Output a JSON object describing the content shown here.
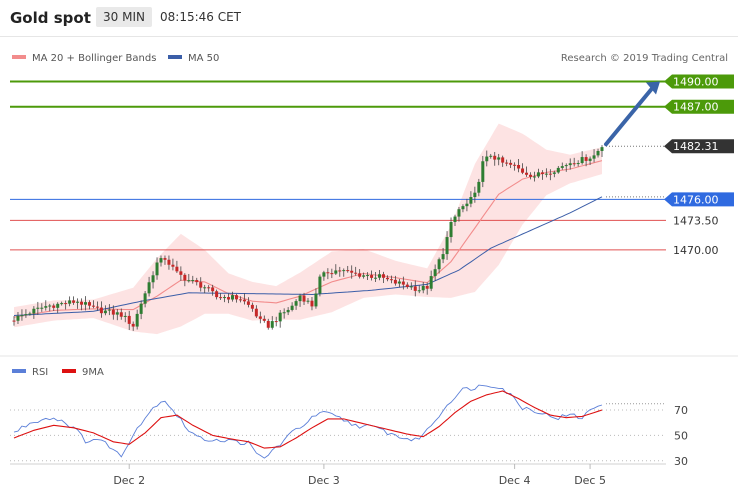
{
  "header": {
    "title": "Gold spot",
    "timeframe": "30 MIN",
    "time": "08:15:46 CET"
  },
  "legend": {
    "ma20_label": "MA 20 + Bollinger Bands",
    "ma50_label": "MA 50",
    "ma20_color": "#f28c8c",
    "ma50_color": "#3b5ea8",
    "credit": "Research © 2019 Trading Central"
  },
  "rsi_legend": {
    "rsi_label": "RSI",
    "ma_label": "9MA",
    "rsi_color": "#5b7fd8",
    "ma_color": "#dd1111"
  },
  "colors": {
    "green": "#4c9a0a",
    "blue_level": "#2f6ae0",
    "red_level": "#e05050",
    "up_candle": "#2e7d32",
    "down_candle": "#c62828",
    "band_fill": "#fde0e0",
    "arrow": "#3a64a8",
    "last_price_bg": "#333333"
  },
  "chart_data": [
    {
      "type": "candlestick",
      "title": "Gold spot",
      "ylim": [
        1458.7,
        1491.6
      ],
      "x_ticks": [
        "Dec 2",
        "Dec 3",
        "Dec 4",
        "Dec 5"
      ],
      "levels": [
        {
          "label": "1490.00",
          "value": 1490.0,
          "style": "resistance-green"
        },
        {
          "label": "1487.00",
          "value": 1487.0,
          "style": "resistance-green"
        },
        {
          "label": "1476.00",
          "value": 1476.0,
          "style": "pivot-blue"
        },
        {
          "label": "1473.50",
          "value": 1473.5,
          "style": "support-red"
        },
        {
          "label": "1470.00",
          "value": 1470.0,
          "style": "support-red"
        }
      ],
      "last_price": {
        "label": "1482.31",
        "value": 1482.31
      },
      "close_anchors": [
        [
          0,
          1461.8
        ],
        [
          4,
          1462.6
        ],
        [
          8,
          1463.3
        ],
        [
          12,
          1463.6
        ],
        [
          16,
          1463.9
        ],
        [
          20,
          1463.0
        ],
        [
          24,
          1462.6
        ],
        [
          27,
          1462.3
        ],
        [
          30,
          1461.0
        ],
        [
          32,
          1463.7
        ],
        [
          34,
          1466.1
        ],
        [
          36,
          1468.4
        ],
        [
          38,
          1469.0
        ],
        [
          41,
          1467.2
        ],
        [
          44,
          1466.4
        ],
        [
          48,
          1465.6
        ],
        [
          51,
          1464.4
        ],
        [
          54,
          1464.4
        ],
        [
          57,
          1464.2
        ],
        [
          60,
          1463.0
        ],
        [
          62,
          1461.5
        ],
        [
          64,
          1461.0
        ],
        [
          67,
          1462.2
        ],
        [
          70,
          1463.3
        ],
        [
          72,
          1464.6
        ],
        [
          75,
          1463.4
        ],
        [
          77,
          1466.6
        ],
        [
          79,
          1467.4
        ],
        [
          82,
          1467.6
        ],
        [
          85,
          1467.2
        ],
        [
          88,
          1467.0
        ],
        [
          92,
          1466.8
        ],
        [
          95,
          1466.2
        ],
        [
          98,
          1465.9
        ],
        [
          102,
          1465.3
        ],
        [
          104,
          1465.6
        ],
        [
          106,
          1467.6
        ],
        [
          108,
          1469.8
        ],
        [
          110,
          1473.0
        ],
        [
          112,
          1474.8
        ],
        [
          114,
          1475.4
        ],
        [
          116,
          1476.5
        ],
        [
          118,
          1480.3
        ],
        [
          120,
          1481.3
        ],
        [
          123,
          1480.3
        ],
        [
          126,
          1479.9
        ],
        [
          128,
          1479.3
        ],
        [
          131,
          1478.8
        ],
        [
          134,
          1479.2
        ],
        [
          137,
          1479.7
        ],
        [
          140,
          1480.4
        ],
        [
          143,
          1480.7
        ],
        [
          146,
          1481.2
        ],
        [
          148,
          1482.31
        ]
      ],
      "ma20_anchors": [
        [
          0,
          1462.0
        ],
        [
          10,
          1462.8
        ],
        [
          20,
          1463.0
        ],
        [
          30,
          1462.9
        ],
        [
          36,
          1464.5
        ],
        [
          42,
          1466.4
        ],
        [
          48,
          1466.2
        ],
        [
          54,
          1464.8
        ],
        [
          60,
          1463.9
        ],
        [
          66,
          1463.7
        ],
        [
          72,
          1464.5
        ],
        [
          80,
          1466.2
        ],
        [
          88,
          1467.2
        ],
        [
          96,
          1466.7
        ],
        [
          104,
          1466.1
        ],
        [
          110,
          1468.6
        ],
        [
          116,
          1472.6
        ],
        [
          122,
          1476.6
        ],
        [
          128,
          1478.4
        ],
        [
          134,
          1479.2
        ],
        [
          140,
          1479.6
        ],
        [
          148,
          1480.6
        ]
      ],
      "band_width_anchors": [
        [
          0,
          1.2
        ],
        [
          10,
          1.2
        ],
        [
          20,
          1.1
        ],
        [
          30,
          2.6
        ],
        [
          36,
          4.5
        ],
        [
          42,
          5.5
        ],
        [
          48,
          3.8
        ],
        [
          54,
          2.4
        ],
        [
          60,
          2.3
        ],
        [
          66,
          2.0
        ],
        [
          72,
          2.8
        ],
        [
          80,
          3.6
        ],
        [
          88,
          2.9
        ],
        [
          96,
          2.0
        ],
        [
          104,
          1.7
        ],
        [
          110,
          4.3
        ],
        [
          116,
          7.6
        ],
        [
          122,
          8.4
        ],
        [
          128,
          5.4
        ],
        [
          134,
          2.7
        ],
        [
          140,
          1.7
        ],
        [
          148,
          1.6
        ]
      ],
      "ma50_anchors": [
        [
          0,
          1462.2
        ],
        [
          20,
          1462.7
        ],
        [
          32,
          1463.9
        ],
        [
          44,
          1464.9
        ],
        [
          60,
          1464.8
        ],
        [
          75,
          1464.7
        ],
        [
          90,
          1465.2
        ],
        [
          104,
          1465.9
        ],
        [
          112,
          1467.6
        ],
        [
          120,
          1470.2
        ],
        [
          130,
          1472.3
        ],
        [
          140,
          1474.4
        ],
        [
          148,
          1476.3
        ]
      ]
    },
    {
      "type": "line",
      "title": "RSI",
      "ylim": [
        18,
        100
      ],
      "y_ticks": [
        30,
        50,
        70
      ],
      "series": [
        {
          "name": "RSI",
          "anchors": [
            [
              0,
              52
            ],
            [
              3,
              58
            ],
            [
              6,
              62
            ],
            [
              9,
              64
            ],
            [
              12,
              62
            ],
            [
              15,
              56
            ],
            [
              18,
              46
            ],
            [
              21,
              47
            ],
            [
              24,
              42
            ],
            [
              27,
              33
            ],
            [
              30,
              52
            ],
            [
              33,
              64
            ],
            [
              36,
              75
            ],
            [
              38,
              78
            ],
            [
              41,
              66
            ],
            [
              44,
              54
            ],
            [
              47,
              47
            ],
            [
              50,
              47
            ],
            [
              53,
              46
            ],
            [
              56,
              45
            ],
            [
              59,
              44
            ],
            [
              61,
              35
            ],
            [
              63,
              32
            ],
            [
              65,
              38
            ],
            [
              68,
              46
            ],
            [
              71,
              55
            ],
            [
              74,
              61
            ],
            [
              77,
              68
            ],
            [
              80,
              66
            ],
            [
              83,
              62
            ],
            [
              86,
              58
            ],
            [
              89,
              57
            ],
            [
              92,
              55
            ],
            [
              95,
              51
            ],
            [
              98,
              48
            ],
            [
              101,
              46
            ],
            [
              104,
              54
            ],
            [
              107,
              66
            ],
            [
              110,
              78
            ],
            [
              113,
              86
            ],
            [
              116,
              88
            ],
            [
              119,
              90
            ],
            [
              122,
              89
            ],
            [
              125,
              82
            ],
            [
              128,
              72
            ],
            [
              131,
              70
            ],
            [
              134,
              66
            ],
            [
              137,
              64
            ],
            [
              140,
              66
            ],
            [
              143,
              64
            ],
            [
              146,
              72
            ],
            [
              148,
              75
            ]
          ]
        },
        {
          "name": "9MA",
          "anchors": [
            [
              0,
              48
            ],
            [
              5,
              54
            ],
            [
              10,
              58
            ],
            [
              15,
              56
            ],
            [
              20,
              52
            ],
            [
              25,
              45
            ],
            [
              29,
              43
            ],
            [
              33,
              52
            ],
            [
              37,
              64
            ],
            [
              41,
              66
            ],
            [
              45,
              58
            ],
            [
              50,
              50
            ],
            [
              55,
              47
            ],
            [
              59,
              45
            ],
            [
              63,
              40
            ],
            [
              67,
              41
            ],
            [
              71,
              48
            ],
            [
              75,
              56
            ],
            [
              79,
              63
            ],
            [
              83,
              63
            ],
            [
              87,
              60
            ],
            [
              91,
              57
            ],
            [
              95,
              54
            ],
            [
              99,
              51
            ],
            [
              103,
              49
            ],
            [
              107,
              57
            ],
            [
              111,
              68
            ],
            [
              115,
              77
            ],
            [
              119,
              82
            ],
            [
              123,
              85
            ],
            [
              127,
              79
            ],
            [
              131,
              72
            ],
            [
              135,
              66
            ],
            [
              139,
              64
            ],
            [
              143,
              65
            ],
            [
              148,
              70
            ]
          ]
        }
      ]
    }
  ]
}
